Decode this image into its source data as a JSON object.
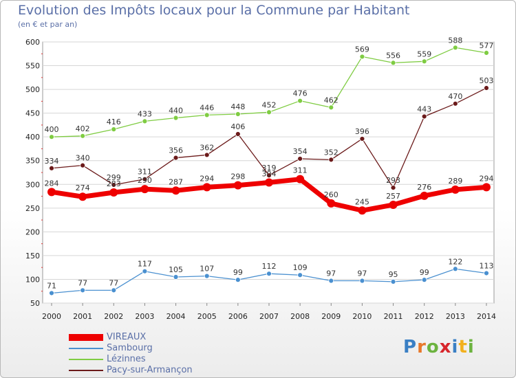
{
  "title": "Evolution des Impôts locaux pour la Commune par Habitant",
  "subtitle": "(en € et par an)",
  "logo": "Proxiti",
  "chart_data": {
    "type": "line",
    "title": "Evolution des Impôts locaux pour la Commune par Habitant",
    "ylabel": "(en € et par an)",
    "xlabel": "",
    "ylim": [
      50,
      600
    ],
    "yticks": [
      50,
      100,
      150,
      200,
      250,
      300,
      350,
      400,
      450,
      500,
      550,
      600
    ],
    "grid": "horizontal",
    "legend_position": "bottom-left",
    "categories": [
      "2000",
      "2001",
      "2002",
      "2003",
      "2004",
      "2005",
      "2006",
      "2007",
      "2008",
      "2009",
      "2010",
      "2011",
      "2012",
      "2013",
      "2014"
    ],
    "series": [
      {
        "name": "Lézinnes",
        "color": "#7fcc42",
        "values": [
          400,
          402,
          416,
          433,
          440,
          446,
          448,
          452,
          476,
          462,
          569,
          556,
          559,
          588,
          577
        ]
      },
      {
        "name": "Pacy-sur-Armançon",
        "color": "#6b1a1a",
        "values": [
          334,
          340,
          299,
          311,
          356,
          362,
          406,
          319,
          354,
          352,
          396,
          293,
          443,
          470,
          503
        ]
      },
      {
        "name": "Sambourg",
        "color": "#4a90d0",
        "values": [
          71,
          77,
          77,
          117,
          105,
          107,
          99,
          112,
          109,
          97,
          97,
          95,
          99,
          122,
          113
        ]
      },
      {
        "name": "VIREAUX",
        "color": "#ee0000",
        "values": [
          284,
          274,
          283,
          290,
          287,
          294,
          298,
          304,
          311,
          260,
          245,
          257,
          276,
          289,
          294
        ]
      }
    ],
    "legend": [
      "VIREAUX",
      "Sambourg",
      "Lézinnes",
      "Pacy-sur-Armançon"
    ]
  }
}
